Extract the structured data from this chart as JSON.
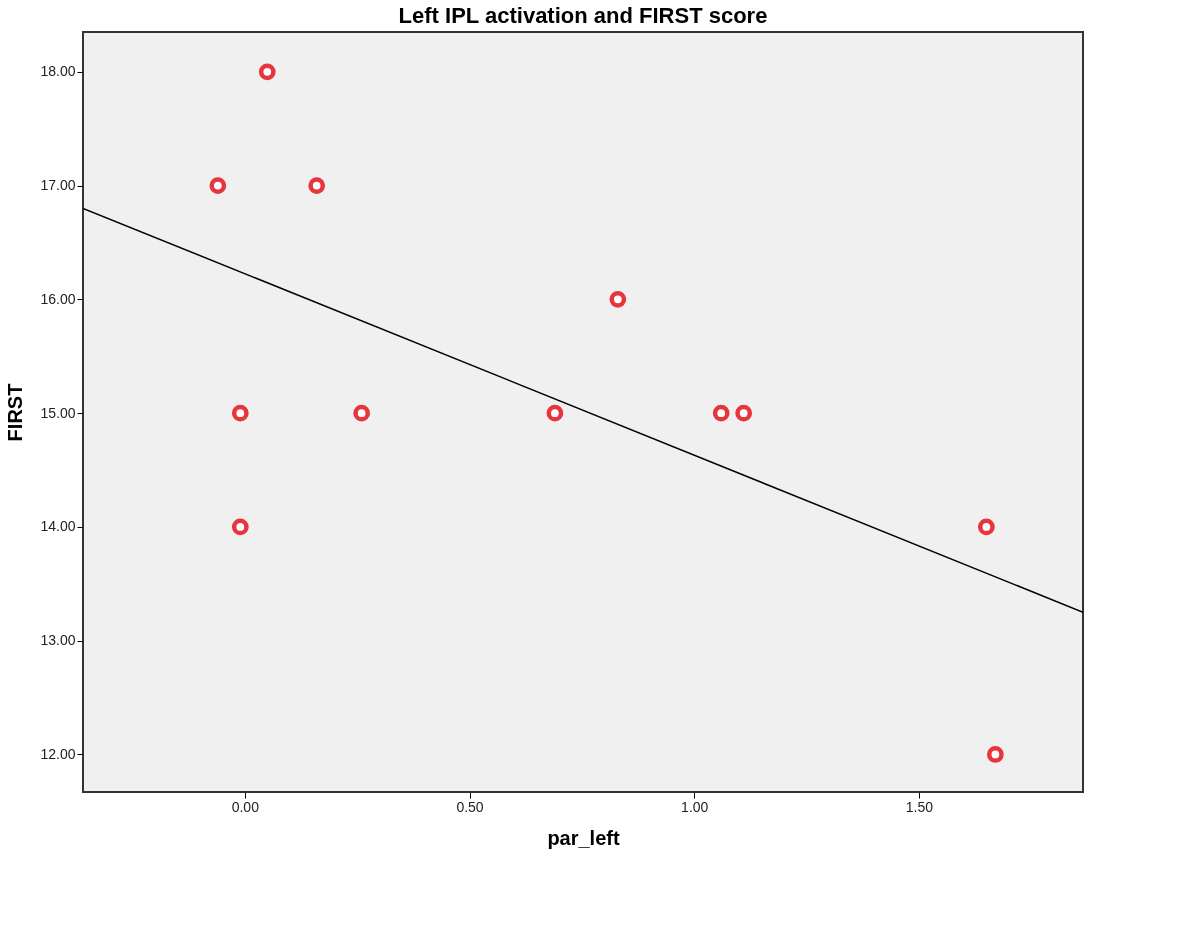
{
  "chart_data": {
    "type": "scatter",
    "title": "Left IPL activation and FIRST score",
    "xlabel": "par_left",
    "ylabel": "FIRST",
    "xlim": [
      -0.36,
      1.865
    ],
    "ylim": [
      11.67,
      18.35
    ],
    "xticks": [
      {
        "value": 0,
        "label": "0.00"
      },
      {
        "value": 0.5,
        "label": "0.50"
      },
      {
        "value": 1,
        "label": "1.00"
      },
      {
        "value": 1.5,
        "label": "1.50"
      }
    ],
    "yticks": [
      {
        "value": 12,
        "label": "12.00"
      },
      {
        "value": 13,
        "label": "13.00"
      },
      {
        "value": 14,
        "label": "14.00"
      },
      {
        "value": 15,
        "label": "15.00"
      },
      {
        "value": 16,
        "label": "16.00"
      },
      {
        "value": 17,
        "label": "17.00"
      },
      {
        "value": 18,
        "label": "18.00"
      }
    ],
    "grid": false,
    "series": [
      {
        "type": "scatter",
        "marker": "circle",
        "color": "#e8343c",
        "x": [
          0.05,
          -0.06,
          0.16,
          0.83,
          -0.01,
          0.26,
          0.69,
          1.06,
          1.11,
          -0.01,
          1.65,
          1.67
        ],
        "values": [
          18,
          17,
          17,
          16,
          15,
          15,
          15,
          15,
          15,
          14,
          14,
          12
        ]
      },
      {
        "type": "line",
        "marker": "none",
        "color": "#000000",
        "x": [
          -0.36,
          1.865
        ],
        "values": [
          16.8,
          13.25
        ]
      }
    ]
  }
}
